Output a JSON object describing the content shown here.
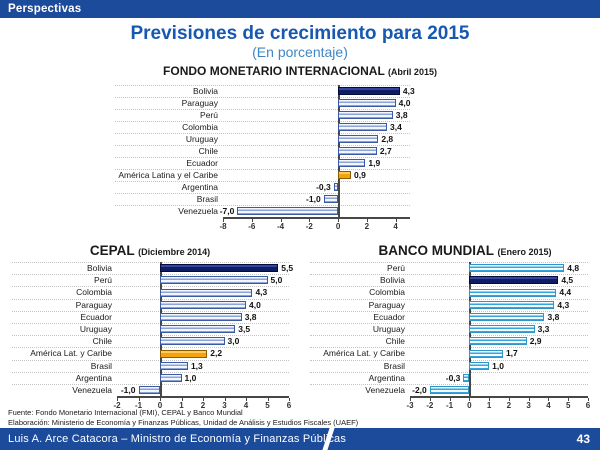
{
  "header": {
    "label": "Perspectivas"
  },
  "title": "Previsiones de crecimiento para 2015",
  "subtitle": "(En porcentaje)",
  "colors": {
    "banner_blue": "#1C4B9C",
    "title_blue": "#1758B0",
    "subtitle_blue": "#3F86C6",
    "bar_navy": "#0D1C63",
    "bar_orange": "#F2A40B",
    "bar_blue_stripe": "#8CA3D6",
    "bar_cyan_stripe": "#35A5DE"
  },
  "chart_data": [
    {
      "type": "bar",
      "orientation": "horizontal",
      "title": "FONDO MONETARIO INTERNACIONAL",
      "subtitle": "(Abril 2015)",
      "categories": [
        "Bolivia",
        "Paraguay",
        "Perú",
        "Colombia",
        "Uruguay",
        "Chile",
        "Ecuador",
        "América Latina y el Caribe",
        "Argentina",
        "Brasil",
        "Venezuela"
      ],
      "values": [
        4.3,
        4.0,
        3.8,
        3.4,
        2.8,
        2.7,
        1.9,
        0.9,
        -0.3,
        -1.0,
        -7.0
      ],
      "value_labels": [
        "4,3",
        "4,0",
        "3,8",
        "3,4",
        "2,8",
        "2,7",
        "1,9",
        "0,9",
        "-0,3",
        "-1,0",
        "-7,0"
      ],
      "bar_styles": [
        "navy",
        "default",
        "default",
        "default",
        "default",
        "default",
        "default",
        "orange",
        "default",
        "default",
        "default"
      ],
      "theme": "blue",
      "xlim": [
        -8,
        5
      ],
      "ticks": [
        -8,
        -6,
        -4,
        -2,
        0,
        2,
        4
      ],
      "grid": "dotted-row-separators",
      "legend": "none"
    },
    {
      "type": "bar",
      "orientation": "horizontal",
      "title": "CEPAL",
      "subtitle": "(Diciembre 2014)",
      "categories": [
        "Bolivia",
        "Perú",
        "Colombia",
        "Paraguay",
        "Ecuador",
        "Uruguay",
        "Chile",
        "América Lat. y Caribe",
        "Brasil",
        "Argentina",
        "Venezuela"
      ],
      "values": [
        5.5,
        5.0,
        4.3,
        4.0,
        3.8,
        3.5,
        3.0,
        2.2,
        1.3,
        1.0,
        -1.0
      ],
      "value_labels": [
        "5,5",
        "5,0",
        "4,3",
        "4,0",
        "3,8",
        "3,5",
        "3,0",
        "2,2",
        "1,3",
        "1,0",
        "-1,0"
      ],
      "bar_styles": [
        "navy",
        "default",
        "default",
        "default",
        "default",
        "default",
        "default",
        "orange",
        "default",
        "default",
        "default"
      ],
      "theme": "blue",
      "xlim": [
        -2,
        6
      ],
      "ticks": [
        -2,
        -1,
        0,
        1,
        2,
        3,
        4,
        5,
        6
      ],
      "grid": "dotted-row-separators",
      "legend": "none"
    },
    {
      "type": "bar",
      "orientation": "horizontal",
      "title": "BANCO MUNDIAL",
      "subtitle": "(Enero 2015)",
      "categories": [
        "Perú",
        "Bolivia",
        "Colombia",
        "Paraguay",
        "Ecuador",
        "Uruguay",
        "Chile",
        "América Lat. y Caribe",
        "Brasil",
        "Argentina",
        "Venezuela"
      ],
      "values": [
        4.8,
        4.5,
        4.4,
        4.3,
        3.8,
        3.3,
        2.9,
        1.7,
        1.0,
        -0.3,
        -2.0
      ],
      "value_labels": [
        "4,8",
        "4,5",
        "4,4",
        "4,3",
        "3,8",
        "3,3",
        "2,9",
        "1,7",
        "1,0",
        "-0,3",
        "-2,0"
      ],
      "bar_styles": [
        "default",
        "navy",
        "default",
        "default",
        "default",
        "default",
        "default",
        "default",
        "default",
        "default",
        "default"
      ],
      "theme": "cyan",
      "xlim": [
        -3,
        6
      ],
      "ticks": [
        -3,
        -2,
        -1,
        0,
        1,
        2,
        3,
        4,
        5,
        6
      ],
      "grid": "dotted-row-separators",
      "legend": "none"
    }
  ],
  "footer": {
    "source": "Fuente: Fondo Monetario Internacional (FMI), CEPAL y Banco Mundial",
    "elaboration": "Elaboración: Ministerio de Economía y Finanzas Públicas, Unidad de Análisis y Estudios Fiscales (UAEF)"
  },
  "bottom_bar": {
    "text": "Luis A. Arce Catacora – Ministro de Economía y Finanzas Públicas",
    "page": "43"
  }
}
